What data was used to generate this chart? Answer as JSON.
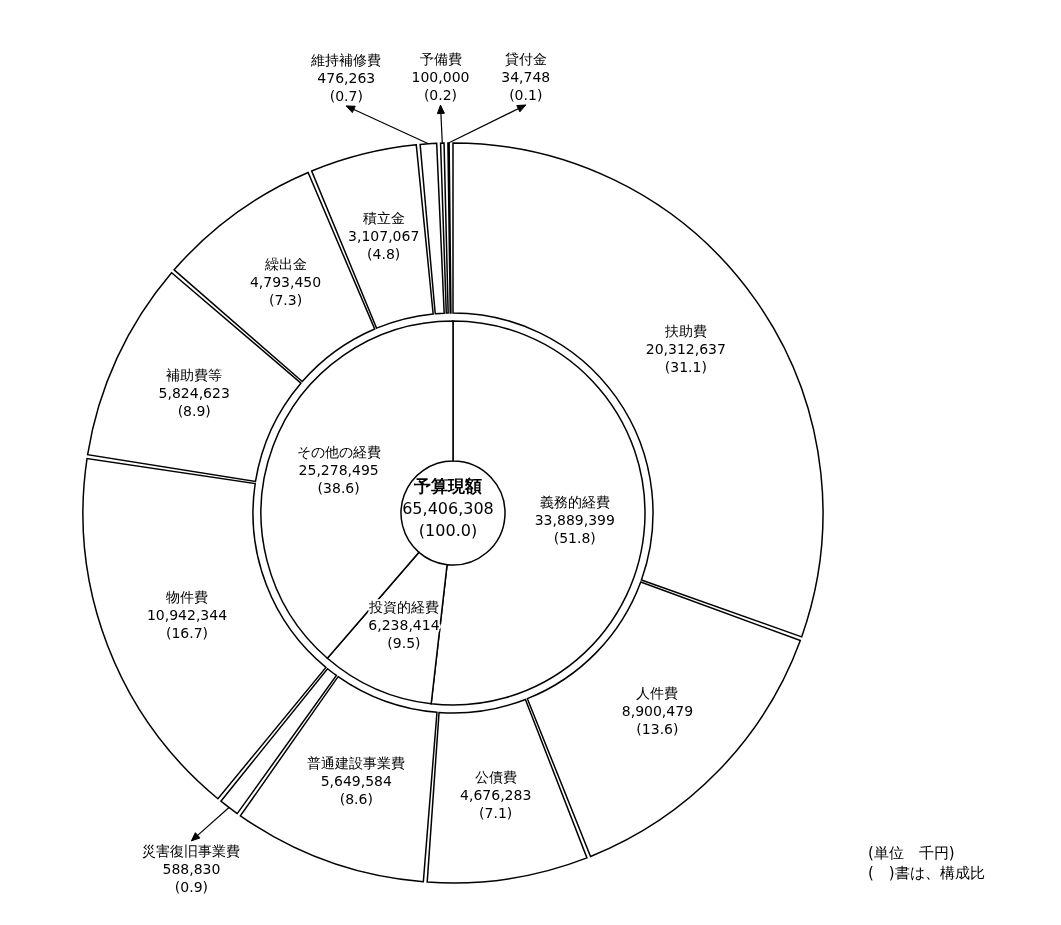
{
  "chart_data": [
    {
      "type": "donut",
      "title": "予算現額",
      "subtitle": "65,406,308",
      "annotations": [
        "(100.0)"
      ],
      "categories": [
        "義務的経費",
        "投資的経費",
        "その他の経費"
      ],
      "values": [
        33889399,
        6238414,
        25278495
      ],
      "value_labels": [
        "33,889,399\n(51.8)",
        "6,238,414\n(9.5)",
        "25,278,495\n(38.6)"
      ],
      "colors": [
        "#ffffff",
        "#ffffff",
        "#ffffff"
      ]
    },
    {
      "type": "donut",
      "annotations": [
        "(単位　千円)",
        "(　)書は、構成比"
      ],
      "categories": [
        "扶助費",
        "人件費",
        "公債費",
        "普通建設事業費",
        "災害復旧事業費",
        "物件費",
        "補助費等",
        "繰出金",
        "積立金",
        "維持補修費",
        "予備費",
        "貸付金"
      ],
      "values": [
        20312637,
        8900479,
        4676283,
        5649584,
        588830,
        10942344,
        5824623,
        4793450,
        3107067,
        476263,
        100000,
        34748
      ],
      "value_labels": [
        "20,312,637\n(31.1)",
        "8,900,479\n(13.6)",
        "4,676,283\n(7.1)",
        "5,649,584\n(8.6)",
        "588,830\n(0.9)",
        "10,942,344\n(16.7)",
        "5,824,623\n(8.9)",
        "4,793,450\n(7.3)",
        "3,107,067\n(4.8)",
        "476,263\n(0.7)",
        "100,000\n(0.2)",
        "34,748\n(0.1)"
      ],
      "colors": [
        "#ffffff",
        "#ffffff",
        "#ffffff",
        "#ffffff",
        "#ffffff",
        "#ffffff",
        "#ffffff",
        "#ffffff",
        "#ffffff",
        "#ffffff",
        "#ffffff",
        "#ffffff"
      ]
    }
  ]
}
